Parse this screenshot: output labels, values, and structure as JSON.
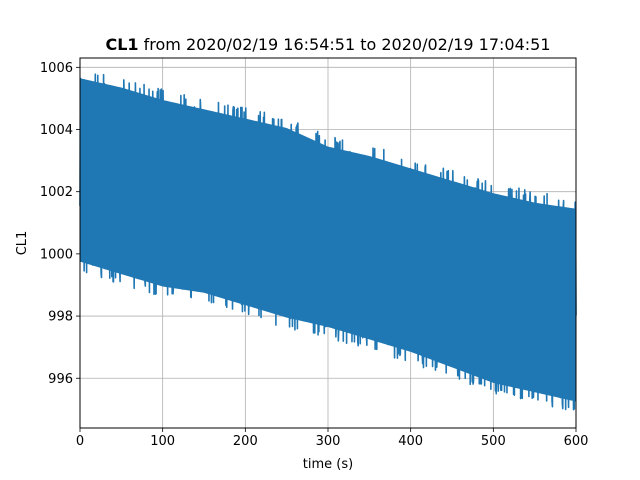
{
  "chart_data": {
    "type": "line",
    "title_bold": "CL1",
    "title_rest": " from 2020/02/19 16:54:51 to 2020/02/19 17:04:51",
    "xlabel": "time (s)",
    "ylabel": "CL1",
    "xlim": [
      0,
      600
    ],
    "ylim": [
      994.4,
      1006.3
    ],
    "xticks": [
      0,
      100,
      200,
      300,
      400,
      500,
      600
    ],
    "yticks": [
      996,
      998,
      1000,
      1002,
      1004,
      1006
    ],
    "grid": true,
    "series": [
      {
        "color": "#1f77b4",
        "envelope": {
          "x": [
            0,
            50,
            100,
            150,
            200,
            250,
            300,
            350,
            400,
            450,
            500,
            550,
            600
          ],
          "max": [
            1006.0,
            1005.7,
            1005.3,
            1005.0,
            1004.7,
            1004.4,
            1003.8,
            1003.5,
            1003.1,
            1002.7,
            1002.3,
            1002.0,
            1001.8
          ],
          "min": [
            999.4,
            999.0,
            998.6,
            998.4,
            998.0,
            997.6,
            997.3,
            996.9,
            996.5,
            996.0,
            995.5,
            995.2,
            994.9
          ]
        },
        "values_note_free": true
      }
    ]
  }
}
